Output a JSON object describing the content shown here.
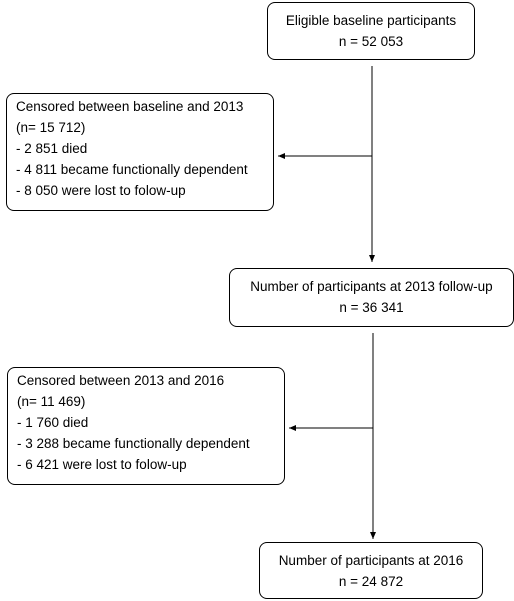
{
  "boxes": {
    "eligible": {
      "line1": "Eligible baseline participants",
      "line2": "n = 52 053"
    },
    "censored_2013": {
      "title": "Censored between baseline and 2013",
      "count": "(n= 15 712)",
      "items": [
        "- 2 851 died",
        "- 4 811 became functionally dependent",
        "- 8 050 were lost to folow-up"
      ]
    },
    "followup_2013": {
      "line1": "Number of participants at 2013 follow-up",
      "line2": "n = 36 341"
    },
    "censored_2016": {
      "title": "Censored between 2013 and 2016",
      "count": "(n= 11 469)",
      "items": [
        "- 1 760 died",
        "- 3 288 became functionally dependent",
        "- 6 421 were lost to folow-up"
      ]
    },
    "final_2016": {
      "line1": "Number of participants at 2016",
      "line2": "n = 24 872"
    }
  }
}
